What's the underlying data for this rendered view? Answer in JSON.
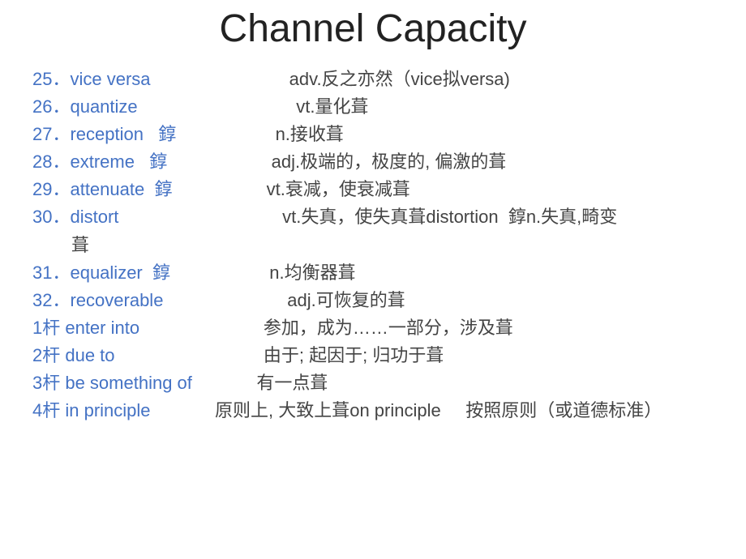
{
  "title": "Channel Capacity",
  "colors": {
    "term": "#4472c4",
    "definition": "#444444",
    "title": "#222222",
    "background": "#ffffff"
  },
  "typography": {
    "title_fontsize": 48,
    "body_fontsize": 22,
    "font_family": "Verdana"
  },
  "entries": [
    {
      "num": "25．",
      "word": "vice versa",
      "gap": "                            ",
      "def": "adv.反之亦然（vice拟versa)"
    },
    {
      "num": "26．",
      "word": "quantize",
      "gap": "                                ",
      "def": "vt.量化葺"
    },
    {
      "num": "27．",
      "word": "reception",
      "note": "   錞",
      "gap": "                    ",
      "def": "n.接收葺"
    },
    {
      "num": "28．",
      "word": "extreme",
      "note": "   錞",
      "gap": "                     ",
      "def": "adj.极端的，极度的, 偏激的葺"
    },
    {
      "num": "29．",
      "word": "attenuate",
      "note": "  錞",
      "gap": "                   ",
      "def": "vt.衰减，使衰减葺"
    },
    {
      "num": "30．",
      "word": "distort",
      "gap": "                                 ",
      "def": "vt.失真，使失真葺distortion  錞n.失真,畸变",
      "wrap": "葺"
    },
    {
      "num": "31．",
      "word": "equalizer",
      "note": "  錞",
      "gap": "                    ",
      "def": "n.均衡器葺"
    },
    {
      "num": "32．",
      "word": "recoverable",
      "gap": "                         ",
      "def": "adj.可恢复的葺"
    }
  ],
  "phrases": [
    {
      "num": "1杆 ",
      "word": "enter into",
      "gap": "                         ",
      "def": "参加，成为……一部分，涉及葺"
    },
    {
      "num": "2杆 ",
      "word": "due to",
      "gap": "                              ",
      "def": "由于; 起因于; 归功于葺"
    },
    {
      "num": "3杆 ",
      "word": "be something of",
      "gap": "             ",
      "def": "有一点葺"
    },
    {
      "num": "4杆 ",
      "word": "in principle",
      "gap": "             ",
      "def": "原则上, 大致上葺on principle     按照原则（或道德标准）"
    }
  ]
}
